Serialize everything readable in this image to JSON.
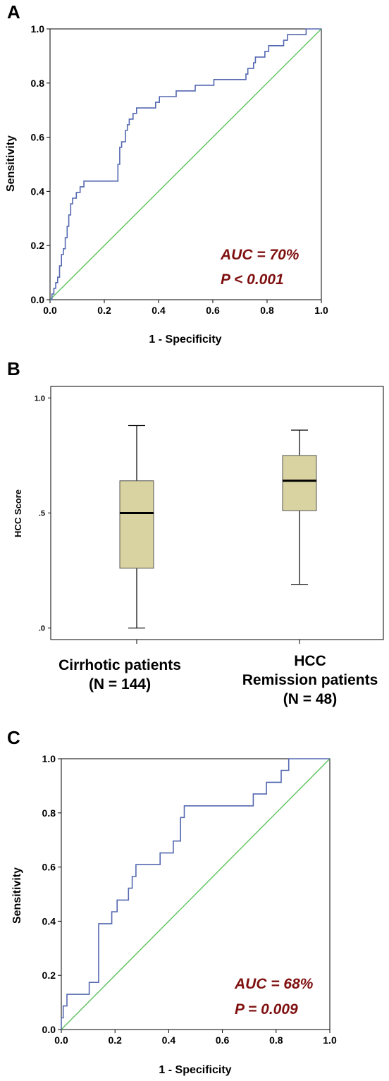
{
  "chart_data": [
    {
      "panel": "A",
      "type": "line",
      "xlabel": "1 - Specificity",
      "ylabel": "Sensitivity",
      "xlim": [
        0,
        1
      ],
      "ylim": [
        0,
        1
      ],
      "xticks": [
        "0.0",
        "0.2",
        "0.4",
        "0.6",
        "0.8",
        "1.0"
      ],
      "yticks": [
        "0.0",
        "0.2",
        "0.4",
        "0.6",
        "0.8",
        "1.0"
      ],
      "annotations": [
        "AUC = 70%",
        "P < 0.001"
      ],
      "colors": {
        "roc": "#5468b0",
        "reference": "#5cc25c",
        "annotation": "#7f1010"
      },
      "series": [
        {
          "role": "roc",
          "x": [
            0,
            0.007,
            0.007,
            0.014,
            0.014,
            0.021,
            0.021,
            0.028,
            0.028,
            0.035,
            0.035,
            0.042,
            0.042,
            0.049,
            0.049,
            0.056,
            0.056,
            0.063,
            0.063,
            0.069,
            0.069,
            0.076,
            0.076,
            0.083,
            0.083,
            0.097,
            0.097,
            0.111,
            0.111,
            0.125,
            0.125,
            0.139,
            0.139,
            0.153,
            0.153,
            0.25,
            0.25,
            0.257,
            0.257,
            0.264,
            0.264,
            0.278,
            0.278,
            0.285,
            0.285,
            0.292,
            0.292,
            0.299,
            0.299,
            0.306,
            0.306,
            0.319,
            0.319,
            0.333,
            0.333,
            0.389,
            0.389,
            0.403,
            0.403,
            0.465,
            0.465,
            0.472,
            0.472,
            0.535,
            0.535,
            0.604,
            0.604,
            0.722,
            0.722,
            0.729,
            0.729,
            0.736,
            0.736,
            0.75,
            0.75,
            0.757,
            0.757,
            0.792,
            0.792,
            0.806,
            0.806,
            0.861,
            0.861,
            0.875,
            0.875,
            0.944,
            0.944,
            1
          ],
          "y": [
            0,
            0,
            0.021,
            0.021,
            0.042,
            0.042,
            0.063,
            0.063,
            0.083,
            0.083,
            0.125,
            0.125,
            0.167,
            0.167,
            0.188,
            0.188,
            0.229,
            0.229,
            0.271,
            0.271,
            0.313,
            0.313,
            0.354,
            0.354,
            0.375,
            0.375,
            0.396,
            0.396,
            0.417,
            0.417,
            0.438,
            0.438,
            0.438,
            0.438,
            0.438,
            0.438,
            0.5,
            0.5,
            0.563,
            0.563,
            0.583,
            0.583,
            0.625,
            0.625,
            0.646,
            0.646,
            0.667,
            0.667,
            0.667,
            0.667,
            0.688,
            0.688,
            0.708,
            0.708,
            0.708,
            0.708,
            0.729,
            0.729,
            0.75,
            0.75,
            0.771,
            0.771,
            0.771,
            0.771,
            0.792,
            0.792,
            0.813,
            0.813,
            0.833,
            0.833,
            0.854,
            0.854,
            0.854,
            0.854,
            0.875,
            0.875,
            0.896,
            0.896,
            0.917,
            0.917,
            0.938,
            0.938,
            0.958,
            0.958,
            0.979,
            0.979,
            1,
            1
          ]
        },
        {
          "role": "reference",
          "x": [
            0,
            1
          ],
          "y": [
            0,
            1
          ]
        }
      ]
    },
    {
      "panel": "B",
      "type": "box",
      "ylabel": "HCC Score",
      "ylim": [
        -0.05,
        1.05
      ],
      "yticks": [
        ".0",
        ".5",
        "1.0"
      ],
      "ytick_values": [
        0,
        0.5,
        1.0
      ],
      "categories": [
        {
          "lines": [
            "Cirrhotic patients",
            "(N = 144)"
          ],
          "min": 0.0,
          "q1": 0.26,
          "median": 0.5,
          "q3": 0.64,
          "max": 0.88
        },
        {
          "lines": [
            "HCC",
            "Remission patients",
            "(N = 48)"
          ],
          "min": 0.19,
          "q1": 0.51,
          "median": 0.64,
          "q3": 0.75,
          "max": 0.86
        }
      ],
      "colors": {
        "box_fill": "#d8d3a0",
        "box_stroke": "#555555",
        "median": "#000000"
      }
    },
    {
      "panel": "C",
      "type": "line",
      "xlabel": "1 - Specificity",
      "ylabel": "Sensitivity",
      "xlim": [
        0,
        1
      ],
      "ylim": [
        0,
        1
      ],
      "xticks": [
        "0.0",
        "0.2",
        "0.4",
        "0.6",
        "0.8",
        "1.0"
      ],
      "yticks": [
        "0.0",
        "0.2",
        "0.4",
        "0.6",
        "0.8",
        "1.0"
      ],
      "annotations": [
        "AUC = 68%",
        "P = 0.009"
      ],
      "colors": {
        "roc": "#5468b0",
        "reference": "#5cc25c",
        "annotation": "#7f1010"
      },
      "series": [
        {
          "role": "roc",
          "x": [
            0,
            0,
            0.007,
            0.007,
            0.021,
            0.021,
            0.104,
            0.104,
            0.139,
            0.139,
            0.188,
            0.188,
            0.208,
            0.208,
            0.25,
            0.25,
            0.264,
            0.264,
            0.278,
            0.278,
            0.368,
            0.368,
            0.417,
            0.417,
            0.444,
            0.444,
            0.458,
            0.458,
            0.715,
            0.715,
            0.764,
            0.764,
            0.819,
            0.819,
            0.833,
            0.833,
            0.847,
            0.847,
            1
          ],
          "y": [
            0,
            0.043,
            0.043,
            0.087,
            0.087,
            0.13,
            0.13,
            0.174,
            0.174,
            0.391,
            0.391,
            0.435,
            0.435,
            0.478,
            0.478,
            0.522,
            0.522,
            0.565,
            0.565,
            0.609,
            0.609,
            0.652,
            0.652,
            0.696,
            0.696,
            0.783,
            0.783,
            0.826,
            0.826,
            0.87,
            0.87,
            0.913,
            0.913,
            0.957,
            0.957,
            0.957,
            0.957,
            1,
            1
          ]
        },
        {
          "role": "reference",
          "x": [
            0,
            1
          ],
          "y": [
            0,
            1
          ]
        }
      ]
    }
  ]
}
